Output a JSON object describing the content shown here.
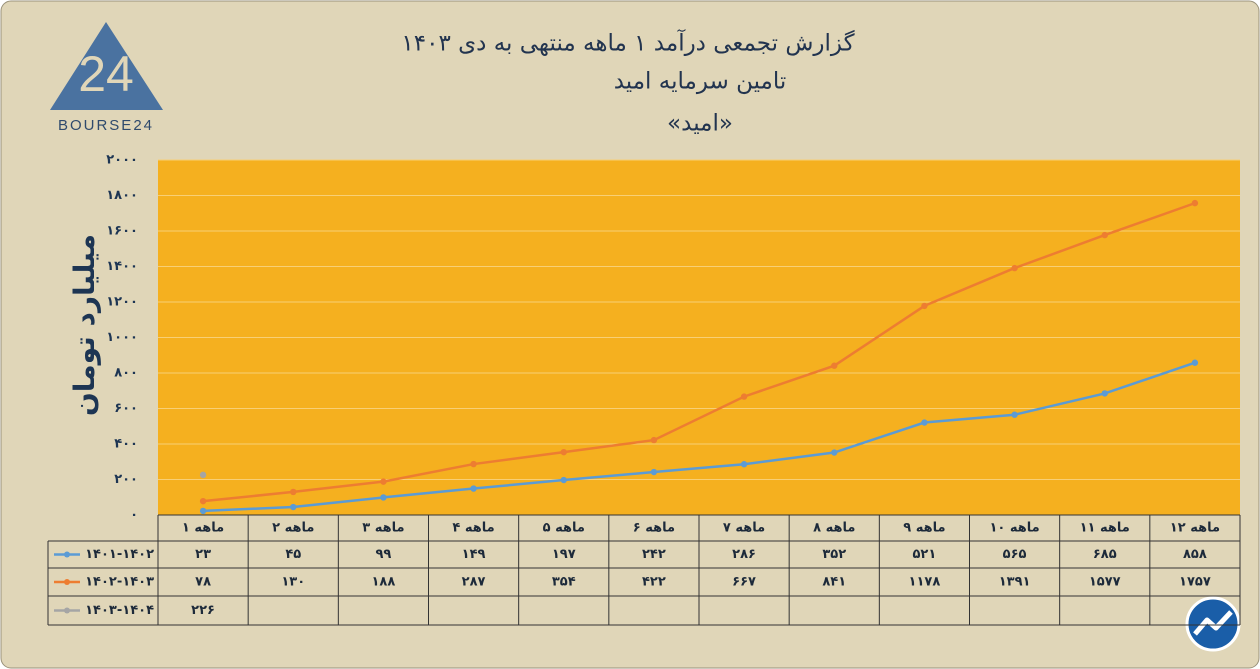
{
  "logo": {
    "mark": "24",
    "text": "BOURSE24"
  },
  "chart_data": {
    "type": "line",
    "title": "گزارش تجمعی درآمد ۱ ماهه منتهی به دی ۱۴۰۳",
    "subtitle": "تامین سرمایه امید",
    "subtitle2": "«امید»",
    "y_label": "میلیارد تومان",
    "categories": [
      "۱ ماهه",
      "۲ ماهه",
      "۳ ماهه",
      "۴ ماهه",
      "۵ ماهه",
      "۶ ماهه",
      "۷ ماهه",
      "۸ ماهه",
      "۹ ماهه",
      "۱۰ ماهه",
      "۱۱ ماهه",
      "۱۲ ماهه"
    ],
    "series": [
      {
        "name": "۱۴۰۱-۱۴۰۲",
        "color": "#5b9bd5",
        "values": [
          23,
          45,
          99,
          149,
          197,
          242,
          286,
          352,
          521,
          565,
          685,
          858
        ],
        "value_labels": [
          "۲۳",
          "۴۵",
          "۹۹",
          "۱۴۹",
          "۱۹۷",
          "۲۴۲",
          "۲۸۶",
          "۳۵۲",
          "۵۲۱",
          "۵۶۵",
          "۶۸۵",
          "۸۵۸"
        ]
      },
      {
        "name": "۱۴۰۲-۱۴۰۳",
        "color": "#ed7d31",
        "values": [
          78,
          130,
          188,
          287,
          354,
          422,
          667,
          841,
          1178,
          1391,
          1577,
          1757
        ],
        "value_labels": [
          "۷۸",
          "۱۳۰",
          "۱۸۸",
          "۲۸۷",
          "۳۵۴",
          "۴۲۲",
          "۶۶۷",
          "۸۴۱",
          "۱۱۷۸",
          "۱۳۹۱",
          "۱۵۷۷",
          "۱۷۵۷"
        ]
      },
      {
        "name": "۱۴۰۳-۱۴۰۴",
        "color": "#a5a5a5",
        "values": [
          226,
          null,
          null,
          null,
          null,
          null,
          null,
          null,
          null,
          null,
          null,
          null
        ],
        "value_labels": [
          "۲۲۶",
          null,
          null,
          null,
          null,
          null,
          null,
          null,
          null,
          null,
          null,
          null
        ]
      }
    ],
    "ylim": [
      0,
      2000
    ],
    "yticks": [
      {
        "value": 0,
        "label": "۰"
      },
      {
        "value": 200,
        "label": "۲۰۰"
      },
      {
        "value": 400,
        "label": "۴۰۰"
      },
      {
        "value": 600,
        "label": "۶۰۰"
      },
      {
        "value": 800,
        "label": "۸۰۰"
      },
      {
        "value": 1000,
        "label": "۱۰۰۰"
      },
      {
        "value": 1200,
        "label": "۱۲۰۰"
      },
      {
        "value": 1400,
        "label": "۱۴۰۰"
      },
      {
        "value": 1600,
        "label": "۱۶۰۰"
      },
      {
        "value": 1800,
        "label": "۱۸۰۰"
      },
      {
        "value": 2000,
        "label": "۲۰۰۰"
      }
    ],
    "grid": true,
    "plot_color": "#f5b01f"
  }
}
